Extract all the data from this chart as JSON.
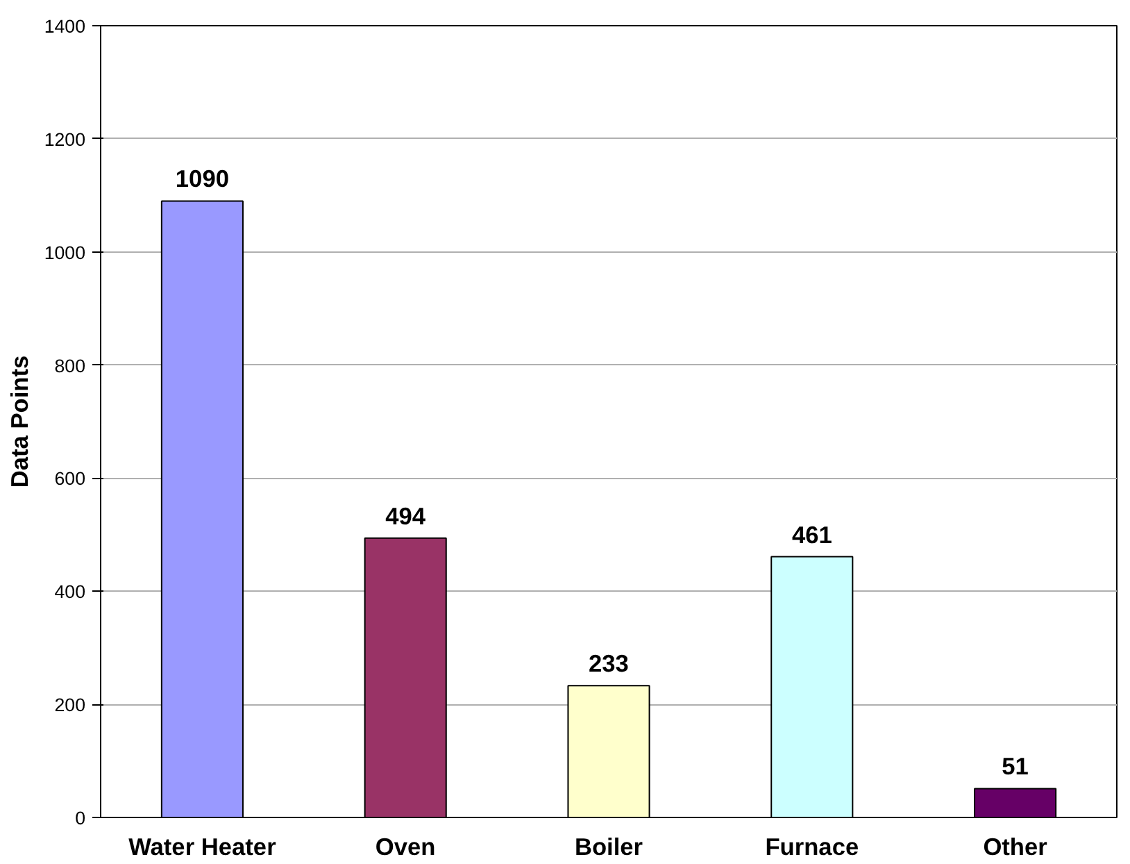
{
  "chart_data": {
    "type": "bar",
    "ylabel": "Data Points",
    "categories": [
      "Water Heater",
      "Oven",
      "Boiler",
      "Furnace",
      "Other"
    ],
    "values": [
      1090,
      494,
      233,
      461,
      51
    ],
    "colors": [
      "#9999ff",
      "#993366",
      "#ffffcc",
      "#ccffff",
      "#660066"
    ],
    "ylim": [
      0,
      1400
    ],
    "yticks": [
      0,
      200,
      400,
      600,
      800,
      1000,
      1200,
      1400
    ],
    "grid": "y",
    "data_labels": true
  }
}
